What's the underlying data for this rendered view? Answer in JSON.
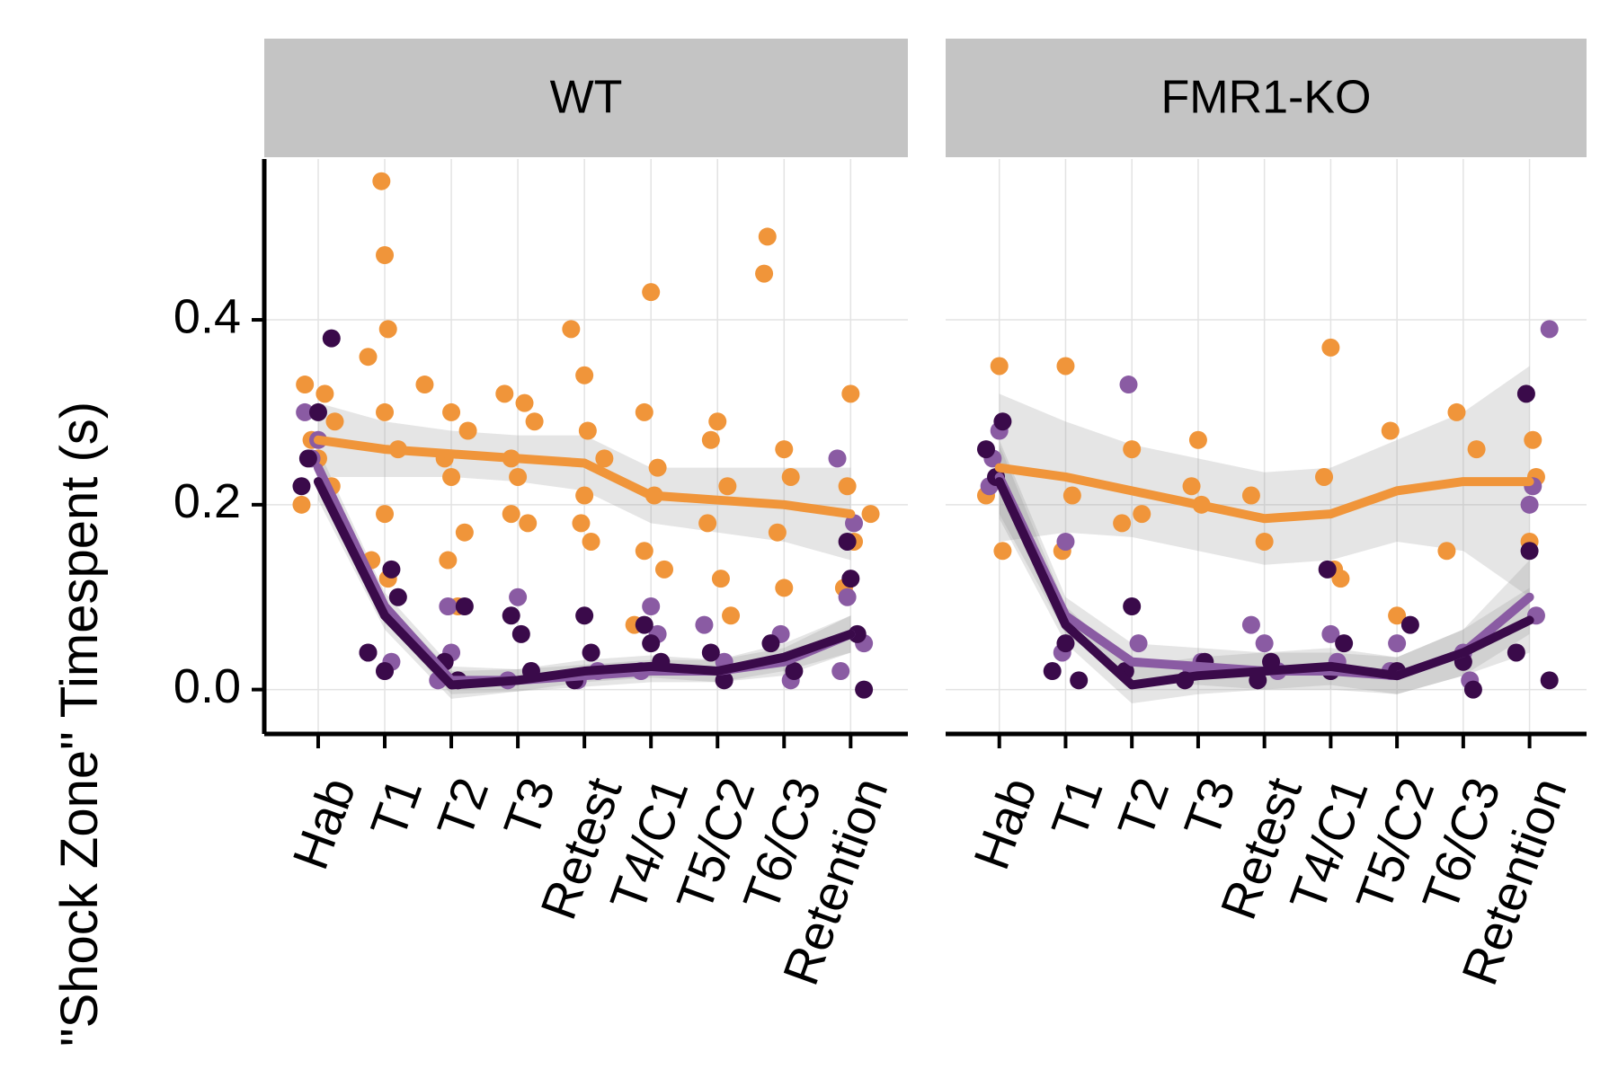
{
  "chart_data": [
    {
      "type": "scatter",
      "title": "WT",
      "ylabel": "\"Shock Zone\" Timespent (s)",
      "xticks": [
        {
          "value": 1,
          "label": "Hab"
        },
        {
          "value": 2,
          "label": "T1"
        },
        {
          "value": 3,
          "label": "T2"
        },
        {
          "value": 4,
          "label": "T3"
        },
        {
          "value": 5,
          "label": "Retest"
        },
        {
          "value": 6,
          "label": "T4/C1"
        },
        {
          "value": 7,
          "label": "T5/C2"
        },
        {
          "value": 8,
          "label": "T6/C3"
        },
        {
          "value": 9,
          "label": "Retention"
        }
      ],
      "xlim": [
        0.19,
        9.86
      ],
      "ylim": [
        -0.048,
        0.574
      ],
      "yticks": [
        {
          "value": 0,
          "label": "0.0"
        },
        {
          "value": 0.2,
          "label": "0.2"
        },
        {
          "value": 0.4,
          "label": "0.4"
        }
      ],
      "grid": true,
      "series": [
        {
          "type": "scatter",
          "color": "#f0953a",
          "x": [
            0.8,
            1.1,
            1.25,
            0.9,
            1.0,
            1.2,
            0.75,
            1.95,
            2.0,
            2.05,
            1.75,
            2.0,
            2.2,
            2.0,
            1.8,
            2.05,
            2.6,
            3.0,
            3.25,
            2.9,
            3.0,
            3.2,
            2.95,
            3.1,
            3.8,
            4.1,
            4.25,
            3.9,
            4.0,
            3.9,
            4.15,
            4.8,
            5.0,
            5.05,
            5.3,
            5.0,
            4.95,
            5.1,
            6.0,
            5.9,
            6.1,
            6.05,
            5.9,
            6.2,
            5.75,
            7.0,
            6.9,
            7.15,
            6.85,
            7.05,
            7.2,
            7.75,
            7.7,
            8.0,
            8.1,
            7.9,
            8.0,
            9.0,
            8.95,
            9.3,
            9.05,
            8.9
          ],
          "y": [
            0.33,
            0.32,
            0.29,
            0.27,
            0.25,
            0.22,
            0.2,
            0.55,
            0.47,
            0.39,
            0.36,
            0.3,
            0.26,
            0.19,
            0.14,
            0.12,
            0.33,
            0.3,
            0.28,
            0.25,
            0.23,
            0.17,
            0.14,
            0.09,
            0.32,
            0.31,
            0.29,
            0.25,
            0.23,
            0.19,
            0.18,
            0.39,
            0.34,
            0.28,
            0.25,
            0.21,
            0.18,
            0.16,
            0.43,
            0.3,
            0.24,
            0.21,
            0.15,
            0.13,
            0.07,
            0.29,
            0.27,
            0.22,
            0.18,
            0.12,
            0.08,
            0.49,
            0.45,
            0.26,
            0.23,
            0.17,
            0.11,
            0.32,
            0.22,
            0.19,
            0.16,
            0.11
          ]
        },
        {
          "type": "scatter",
          "color": "#8a5ba3",
          "x": [
            0.8,
            1.0,
            0.9,
            1.75,
            2.0,
            2.1,
            3.0,
            2.8,
            2.95,
            4.0,
            4.2,
            3.85,
            4.9,
            5.2,
            6.0,
            6.1,
            5.85,
            6.8,
            7.1,
            7.95,
            8.1,
            8.8,
            9.05,
            8.95,
            9.2,
            8.85
          ],
          "y": [
            0.3,
            0.27,
            0.25,
            0.04,
            0.02,
            0.03,
            0.04,
            0.01,
            0.09,
            0.1,
            0.02,
            0.01,
            0.01,
            0.02,
            0.09,
            0.06,
            0.02,
            0.07,
            0.03,
            0.06,
            0.01,
            0.25,
            0.18,
            0.1,
            0.05,
            0.02
          ]
        },
        {
          "type": "scatter",
          "color": "#3a0a4a",
          "x": [
            1.2,
            1.0,
            0.85,
            0.75,
            2.1,
            2.2,
            1.75,
            2.0,
            3.2,
            2.9,
            3.1,
            3.9,
            4.05,
            4.2,
            5.0,
            5.1,
            4.85,
            5.9,
            6.0,
            6.15,
            6.9,
            7.1,
            7.8,
            8.15,
            8.95,
            9.0,
            9.1,
            9.2
          ],
          "y": [
            0.38,
            0.3,
            0.25,
            0.22,
            0.13,
            0.1,
            0.04,
            0.02,
            0.09,
            0.03,
            0.01,
            0.08,
            0.06,
            0.02,
            0.08,
            0.04,
            0.01,
            0.07,
            0.05,
            0.03,
            0.04,
            0.01,
            0.05,
            0.02,
            0.16,
            0.12,
            0.06,
            0.0
          ]
        },
        {
          "type": "line",
          "color": "#f0953a",
          "x": [
            1,
            2,
            3,
            4,
            5,
            6,
            7,
            8,
            9
          ],
          "values": [
            0.27,
            0.26,
            0.255,
            0.25,
            0.245,
            0.21,
            0.205,
            0.2,
            0.19
          ],
          "upper": [
            0.31,
            0.29,
            0.28,
            0.275,
            0.275,
            0.24,
            0.24,
            0.24,
            0.24
          ],
          "lower": [
            0.23,
            0.23,
            0.23,
            0.225,
            0.215,
            0.18,
            0.17,
            0.16,
            0.14
          ]
        },
        {
          "type": "line",
          "color": "#8a5ba3",
          "x": [
            1,
            2,
            3,
            4,
            5,
            6,
            7,
            8,
            9
          ],
          "values": [
            0.24,
            0.09,
            0.01,
            0.01,
            0.015,
            0.02,
            0.02,
            0.03,
            0.06
          ],
          "upper": [
            0.26,
            0.105,
            0.025,
            0.022,
            0.027,
            0.032,
            0.032,
            0.045,
            0.08
          ],
          "lower": [
            0.22,
            0.075,
            -0.005,
            -0.002,
            0.003,
            0.008,
            0.008,
            0.015,
            0.04
          ]
        },
        {
          "type": "line",
          "color": "#3a0a4a",
          "x": [
            1,
            2,
            3,
            4,
            5,
            6,
            7,
            8,
            9
          ],
          "values": [
            0.225,
            0.08,
            0.005,
            0.01,
            0.02,
            0.025,
            0.02,
            0.035,
            0.06
          ],
          "upper": [
            0.245,
            0.095,
            0.02,
            0.022,
            0.032,
            0.037,
            0.032,
            0.05,
            0.08
          ],
          "lower": [
            0.205,
            0.065,
            -0.01,
            -0.002,
            0.008,
            0.013,
            0.008,
            0.02,
            0.04
          ]
        }
      ]
    },
    {
      "type": "scatter",
      "title": "FMR1-KO",
      "xticks": [
        {
          "value": 1,
          "label": "Hab"
        },
        {
          "value": 2,
          "label": "T1"
        },
        {
          "value": 3,
          "label": "T2"
        },
        {
          "value": 4,
          "label": "T3"
        },
        {
          "value": 5,
          "label": "Retest"
        },
        {
          "value": 6,
          "label": "T4/C1"
        },
        {
          "value": 7,
          "label": "T5/C2"
        },
        {
          "value": 8,
          "label": "T6/C3"
        },
        {
          "value": 9,
          "label": "Retention"
        }
      ],
      "xlim": [
        0.19,
        9.86
      ],
      "ylim": [
        -0.048,
        0.574
      ],
      "yticks": [
        0,
        0.2,
        0.4
      ],
      "grid": true,
      "series": [
        {
          "type": "scatter",
          "color": "#f0953a",
          "x": [
            1.0,
            0.8,
            1.05,
            2.0,
            2.1,
            1.95,
            3.0,
            3.15,
            2.85,
            4.0,
            3.9,
            4.05,
            4.8,
            5.0,
            6.0,
            5.9,
            6.05,
            6.15,
            6.9,
            7.0,
            7.9,
            8.2,
            7.75,
            9.05,
            9.1,
            9.0
          ],
          "y": [
            0.35,
            0.21,
            0.15,
            0.35,
            0.21,
            0.15,
            0.26,
            0.19,
            0.18,
            0.27,
            0.22,
            0.2,
            0.21,
            0.16,
            0.37,
            0.23,
            0.13,
            0.12,
            0.28,
            0.08,
            0.3,
            0.26,
            0.15,
            0.27,
            0.23,
            0.16
          ]
        },
        {
          "type": "scatter",
          "color": "#8a5ba3",
          "x": [
            1.0,
            0.9,
            0.85,
            2.0,
            1.95,
            2.95,
            3.1,
            4.05,
            3.9,
            4.8,
            5.0,
            5.2,
            6.0,
            6.1,
            7.0,
            6.9,
            8.0,
            8.1,
            9.3,
            9.05,
            9.0,
            9.1
          ],
          "y": [
            0.28,
            0.25,
            0.22,
            0.16,
            0.04,
            0.33,
            0.05,
            0.03,
            0.02,
            0.07,
            0.05,
            0.02,
            0.06,
            0.03,
            0.05,
            0.02,
            0.04,
            0.01,
            0.39,
            0.22,
            0.2,
            0.08
          ]
        },
        {
          "type": "scatter",
          "color": "#3a0a4a",
          "x": [
            1.05,
            0.8,
            0.95,
            2.0,
            1.8,
            2.2,
            3.0,
            2.9,
            4.1,
            3.8,
            5.1,
            4.9,
            5.95,
            6.2,
            6.0,
            7.2,
            7.0,
            8.0,
            8.15,
            8.95,
            9.0,
            8.8,
            9.3
          ],
          "y": [
            0.29,
            0.26,
            0.23,
            0.05,
            0.02,
            0.01,
            0.09,
            0.02,
            0.03,
            0.01,
            0.03,
            0.01,
            0.13,
            0.05,
            0.02,
            0.07,
            0.02,
            0.03,
            0.0,
            0.32,
            0.15,
            0.04,
            0.01
          ]
        },
        {
          "type": "line",
          "color": "#f0953a",
          "x": [
            1,
            2,
            3,
            4,
            5,
            6,
            7,
            8,
            9
          ],
          "values": [
            0.24,
            0.23,
            0.215,
            0.2,
            0.185,
            0.19,
            0.215,
            0.225,
            0.225
          ],
          "upper": [
            0.32,
            0.29,
            0.265,
            0.25,
            0.235,
            0.24,
            0.27,
            0.3,
            0.35
          ],
          "lower": [
            0.16,
            0.17,
            0.165,
            0.15,
            0.135,
            0.14,
            0.16,
            0.15,
            0.1
          ]
        },
        {
          "type": "line",
          "color": "#8a5ba3",
          "x": [
            1,
            2,
            3,
            4,
            5,
            6,
            7,
            8,
            9
          ],
          "values": [
            0.23,
            0.08,
            0.03,
            0.025,
            0.02,
            0.02,
            0.015,
            0.04,
            0.1
          ],
          "upper": [
            0.27,
            0.1,
            0.05,
            0.045,
            0.04,
            0.04,
            0.035,
            0.065,
            0.14
          ],
          "lower": [
            0.19,
            0.06,
            0.01,
            0.005,
            0.0,
            0.0,
            -0.005,
            0.015,
            0.06
          ]
        },
        {
          "type": "line",
          "color": "#3a0a4a",
          "x": [
            1,
            2,
            3,
            4,
            5,
            6,
            7,
            8,
            9
          ],
          "values": [
            0.225,
            0.07,
            0.005,
            0.015,
            0.02,
            0.025,
            0.015,
            0.04,
            0.075
          ],
          "upper": [
            0.265,
            0.09,
            0.025,
            0.035,
            0.04,
            0.045,
            0.035,
            0.065,
            0.11
          ],
          "lower": [
            0.185,
            0.05,
            -0.015,
            -0.005,
            0.0,
            0.005,
            -0.005,
            0.015,
            0.04
          ]
        }
      ]
    }
  ]
}
